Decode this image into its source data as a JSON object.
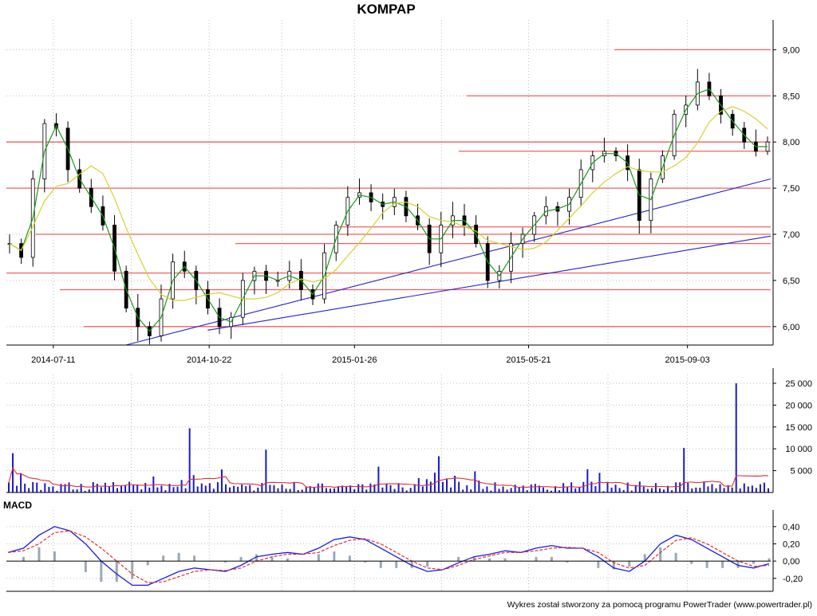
{
  "chart_data": [
    {
      "type": "candlestick",
      "panel": "price",
      "title": "KOMPAP",
      "x_tick_labels": [
        "2014-07-11",
        "2014-10-22",
        "2015-01-26",
        "2015-05-21",
        "2015-09-03"
      ],
      "y_tick_labels": [
        "6,00",
        "6,50",
        "7,00",
        "7,50",
        "8,00",
        "8,50",
        "9,00"
      ],
      "ylim": [
        5.8,
        9.15
      ],
      "x_range_approx": [
        "2014-06-10",
        "2015-10-28"
      ],
      "grid": true,
      "axis_position": "right",
      "horizontal_levels": [
        6.0,
        6.4,
        6.58,
        6.9,
        7.0,
        7.08,
        7.5,
        7.9,
        8.0,
        8.5,
        9.0
      ],
      "trendlines": [
        {
          "from": [
            "2014-08-28",
            5.8
          ],
          "to": [
            "2015-10-28",
            7.6
          ]
        },
        {
          "from": [
            "2014-10-21",
            5.96
          ],
          "to": [
            "2015-10-28",
            6.98
          ]
        }
      ],
      "close_approx": [
        6.9,
        6.75,
        7.6,
        8.2,
        8.15,
        7.7,
        7.5,
        7.3,
        7.1,
        6.6,
        6.2,
        6.0,
        5.9,
        6.3,
        6.7,
        6.6,
        6.4,
        6.2,
        6.0,
        6.1,
        6.5,
        6.6,
        6.5,
        6.5,
        6.6,
        6.4,
        6.3,
        6.8,
        7.1,
        7.4,
        7.45,
        7.35,
        7.3,
        7.4,
        7.2,
        7.1,
        6.8,
        7.1,
        7.2,
        7.1,
        6.9,
        6.5,
        6.6,
        6.9,
        7.0,
        7.2,
        7.3,
        7.25,
        7.4,
        7.7,
        7.85,
        7.9,
        7.85,
        7.7,
        7.15,
        7.6,
        7.85,
        8.3,
        8.4,
        8.65,
        8.5,
        8.3,
        8.15,
        8.0,
        7.9,
        8.0
      ]
    },
    {
      "type": "bar",
      "panel": "volume",
      "y_tick_labels": [
        "5 000",
        "10 000",
        "15 000",
        "20 000",
        "25 000"
      ],
      "ylim": [
        0,
        27000
      ],
      "grid": true,
      "peaks": [
        {
          "date": "2014-06-15",
          "value": 9000
        },
        {
          "date": "2014-10-10",
          "value": 14700
        },
        {
          "date": "2014-11-28",
          "value": 9800
        },
        {
          "date": "2015-03-22",
          "value": 8300
        },
        {
          "date": "2015-08-31",
          "value": 10200
        },
        {
          "date": "2015-10-05",
          "value": 25000
        }
      ],
      "moving_average_color": "#e03030",
      "bar_color": "#1a1ac8"
    },
    {
      "type": "line",
      "panel": "macd",
      "label": "MACD",
      "y_tick_labels": [
        "-0,20",
        "0,00",
        "0,20",
        "0,40"
      ],
      "ylim": [
        -0.35,
        0.5
      ],
      "grid": true,
      "macd_approx": [
        0.1,
        0.15,
        0.3,
        0.4,
        0.35,
        0.2,
        0.0,
        -0.15,
        -0.28,
        -0.28,
        -0.2,
        -0.12,
        -0.08,
        -0.1,
        -0.12,
        -0.05,
        0.05,
        0.08,
        0.1,
        0.08,
        0.15,
        0.25,
        0.28,
        0.25,
        0.15,
        0.05,
        -0.05,
        -0.12,
        -0.1,
        -0.02,
        0.05,
        0.08,
        0.12,
        0.1,
        0.15,
        0.18,
        0.15,
        0.15,
        0.05,
        -0.08,
        -0.12,
        0.0,
        0.2,
        0.3,
        0.25,
        0.15,
        0.05,
        -0.05,
        -0.08,
        -0.03
      ],
      "signal_approx": [
        0.1,
        0.12,
        0.2,
        0.33,
        0.35,
        0.28,
        0.15,
        0.0,
        -0.15,
        -0.25,
        -0.24,
        -0.18,
        -0.12,
        -0.1,
        -0.11,
        -0.08,
        0.0,
        0.05,
        0.08,
        0.08,
        0.1,
        0.18,
        0.24,
        0.26,
        0.2,
        0.1,
        0.0,
        -0.08,
        -0.1,
        -0.05,
        0.02,
        0.06,
        0.1,
        0.1,
        0.12,
        0.15,
        0.16,
        0.15,
        0.1,
        -0.02,
        -0.08,
        -0.05,
        0.1,
        0.24,
        0.27,
        0.2,
        0.1,
        0.0,
        -0.06,
        -0.05
      ],
      "macd_color": "#1a1ae0",
      "signal_color": "#e03030",
      "histogram_color": "#9aa8b4"
    }
  ],
  "footer": "Wykres został stworzony za pomocą programu PowerTrader (www.powertrader.pl)",
  "colors": {
    "candle": "#000000",
    "ma_short": "#1a9a1a",
    "ma_long": "#d8d030",
    "level_line": "#f06060",
    "trendline": "#2020d0",
    "grid": "#bdbdbd"
  }
}
